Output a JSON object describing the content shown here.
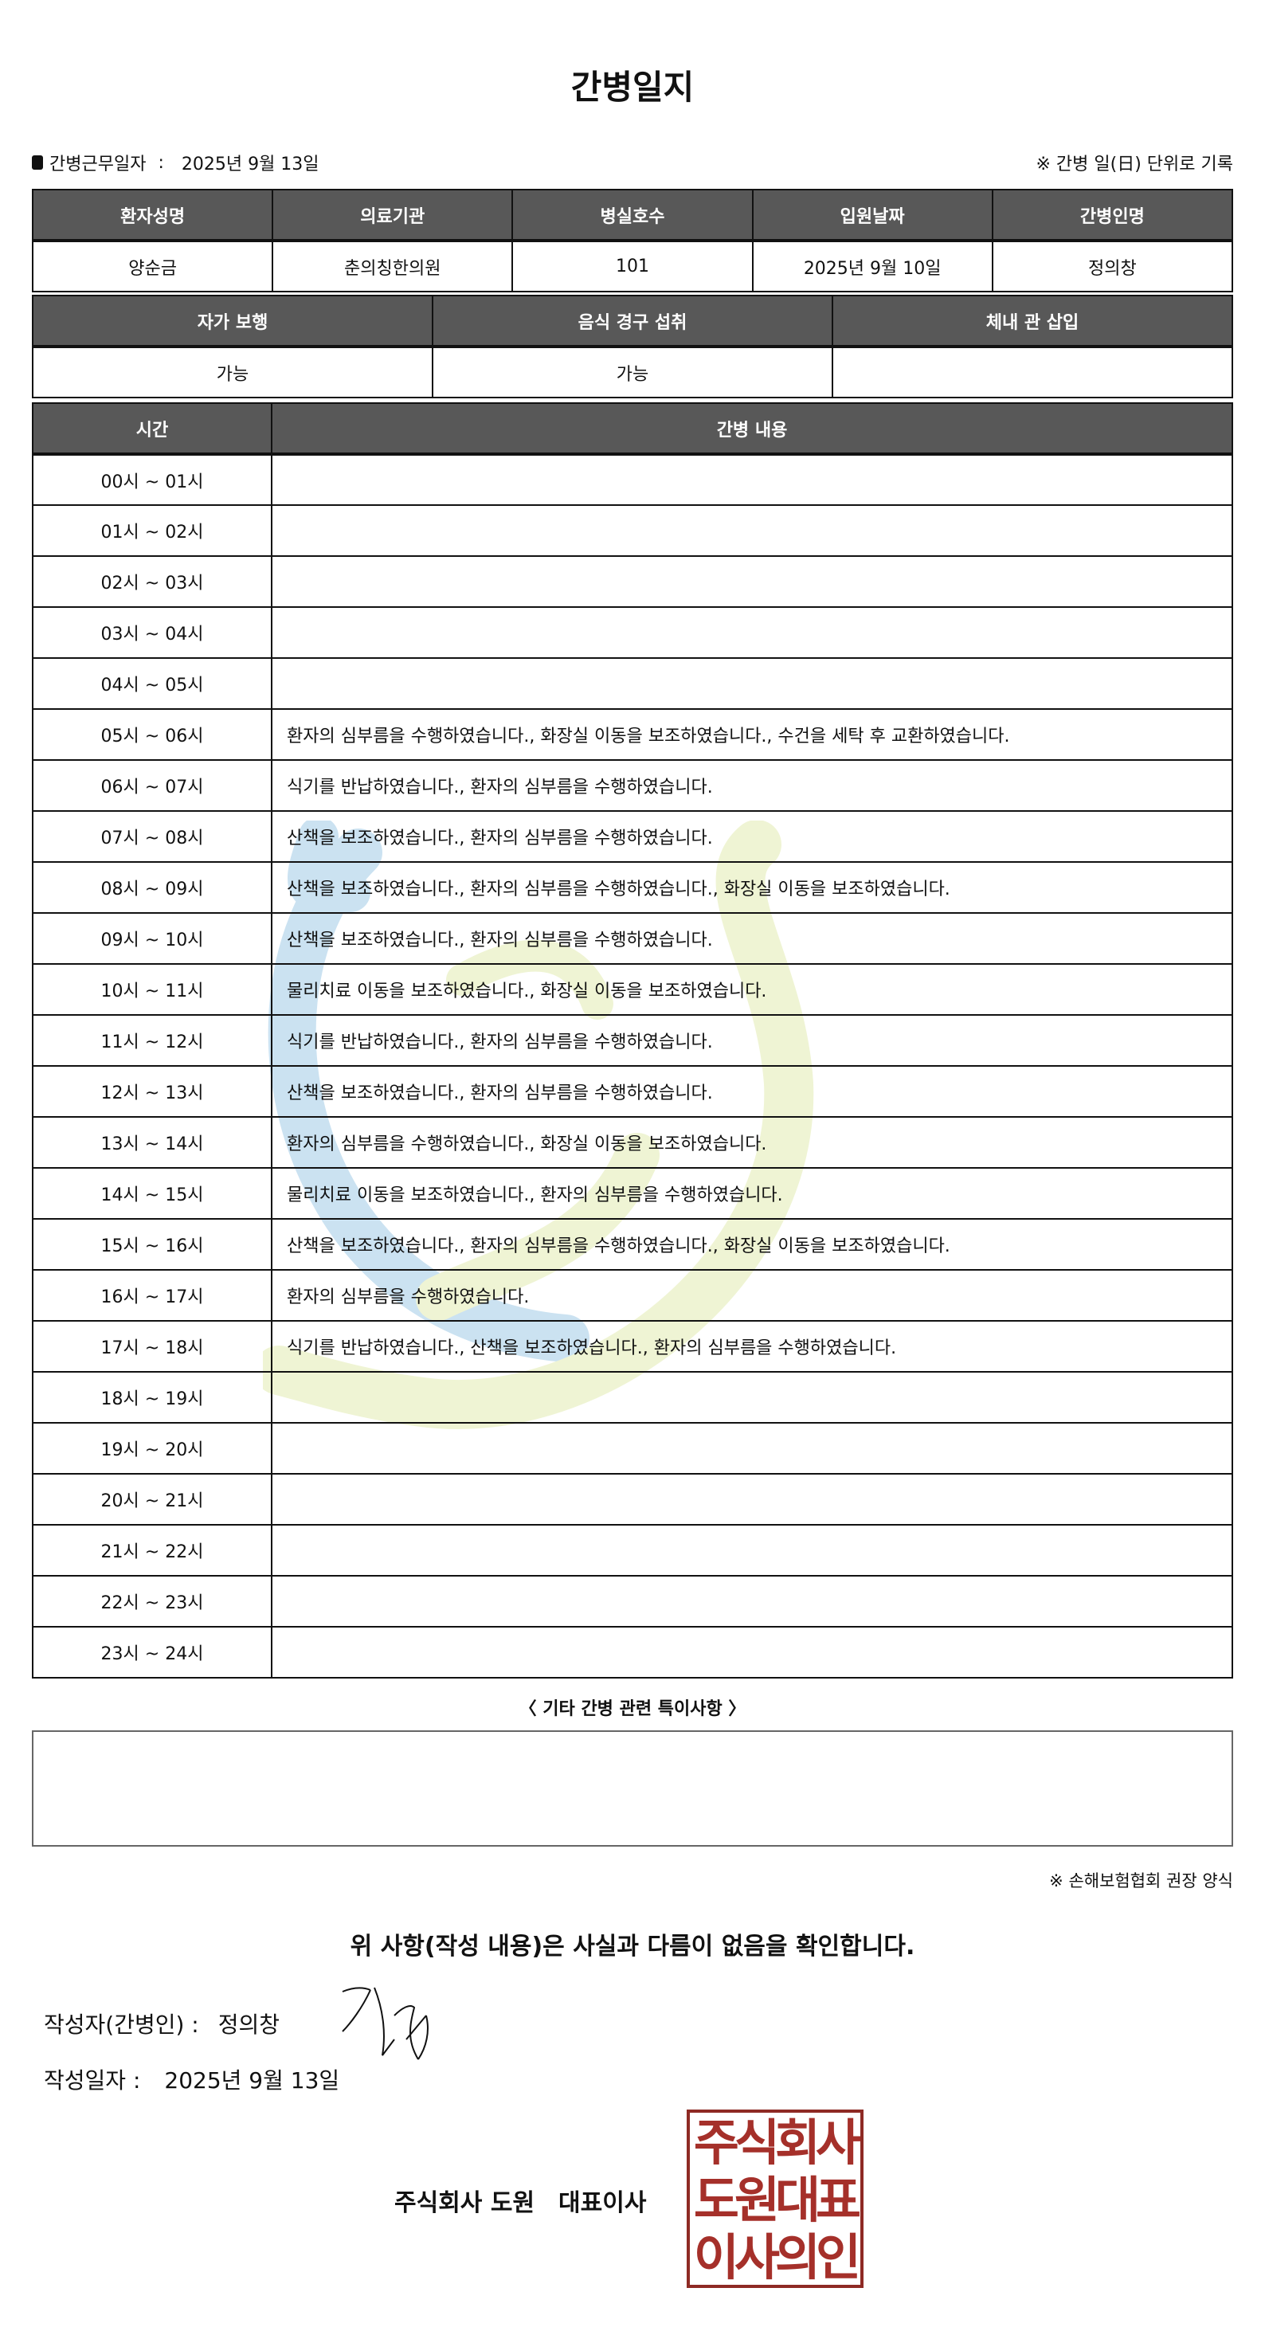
{
  "title": "간병일지",
  "info": {
    "work_date_label": "간병근무일자",
    "work_date": "2025년 9월 13일",
    "note": "※ 간병 일(日) 단위로 기록"
  },
  "patient": {
    "headers": [
      "환자성명",
      "의료기관",
      "병실호수",
      "입원날짜",
      "간병인명"
    ],
    "values": [
      "양순금",
      "춘의칭한의원",
      "101",
      "2025년 9월 10일",
      "정의창"
    ]
  },
  "status": {
    "headers": [
      "자가 보행",
      "음식 경구 섭취",
      "체내 관 삽입"
    ],
    "values": [
      "가능",
      "가능",
      ""
    ]
  },
  "log": {
    "headers": [
      "시간",
      "간병 내용"
    ],
    "rows": [
      [
        "00시 ~ 01시",
        ""
      ],
      [
        "01시 ~ 02시",
        ""
      ],
      [
        "02시 ~ 03시",
        ""
      ],
      [
        "03시 ~ 04시",
        ""
      ],
      [
        "04시 ~ 05시",
        ""
      ],
      [
        "05시 ~ 06시",
        "환자의 심부름을 수행하였습니다., 화장실 이동을 보조하였습니다., 수건을 세탁 후 교환하였습니다."
      ],
      [
        "06시 ~ 07시",
        "식기를 반납하였습니다., 환자의 심부름을 수행하였습니다."
      ],
      [
        "07시 ~ 08시",
        "산책을 보조하였습니다., 환자의 심부름을 수행하였습니다."
      ],
      [
        "08시 ~ 09시",
        "산책을 보조하였습니다., 환자의 심부름을 수행하였습니다., 화장실 이동을 보조하였습니다."
      ],
      [
        "09시 ~ 10시",
        "산책을 보조하였습니다., 환자의 심부름을 수행하였습니다."
      ],
      [
        "10시 ~ 11시",
        "물리치료 이동을 보조하였습니다., 화장실 이동을 보조하였습니다."
      ],
      [
        "11시 ~ 12시",
        "식기를 반납하였습니다., 환자의 심부름을 수행하였습니다."
      ],
      [
        "12시 ~ 13시",
        "산책을 보조하였습니다., 환자의 심부름을 수행하였습니다."
      ],
      [
        "13시 ~ 14시",
        "환자의 심부름을 수행하였습니다., 화장실 이동을 보조하였습니다."
      ],
      [
        "14시 ~ 15시",
        "물리치료 이동을 보조하였습니다., 환자의 심부름을 수행하였습니다."
      ],
      [
        "15시 ~ 16시",
        "산책을 보조하였습니다., 환자의 심부름을 수행하였습니다., 화장실 이동을 보조하였습니다."
      ],
      [
        "16시 ~ 17시",
        "환자의 심부름을 수행하였습니다."
      ],
      [
        "17시 ~ 18시",
        "식기를 반납하였습니다., 산책을 보조하였습니다., 환자의 심부름을 수행하였습니다."
      ],
      [
        "18시 ~ 19시",
        ""
      ],
      [
        "19시 ~ 20시",
        ""
      ],
      [
        "20시 ~ 21시",
        ""
      ],
      [
        "21시 ~ 22시",
        ""
      ],
      [
        "22시 ~ 23시",
        ""
      ],
      [
        "23시 ~ 24시",
        ""
      ]
    ]
  },
  "notes": {
    "label": "〈 기타 간병 관련 특이사항 〉",
    "content": ""
  },
  "recommend": "※ 손해보험협회 권장 양식",
  "confirm": "위 사항(작성 내용)은 사실과 다름이 없음을 확인합니다.",
  "writer": {
    "label": "작성자(간병인) :",
    "name": "정의창"
  },
  "written_date": {
    "label": "작성일자 :",
    "value": "2025년 9월 13일"
  },
  "company": {
    "name": "주식회사 도원",
    "title": "대표이사"
  },
  "seal": {
    "lines": [
      "주식회사",
      "도원대표",
      "이사의인"
    ]
  },
  "colors": {
    "header_bg": "#585858",
    "seal": "#a5302a",
    "watermark_blue": "#c6dff0",
    "watermark_green": "#eef3d0"
  }
}
